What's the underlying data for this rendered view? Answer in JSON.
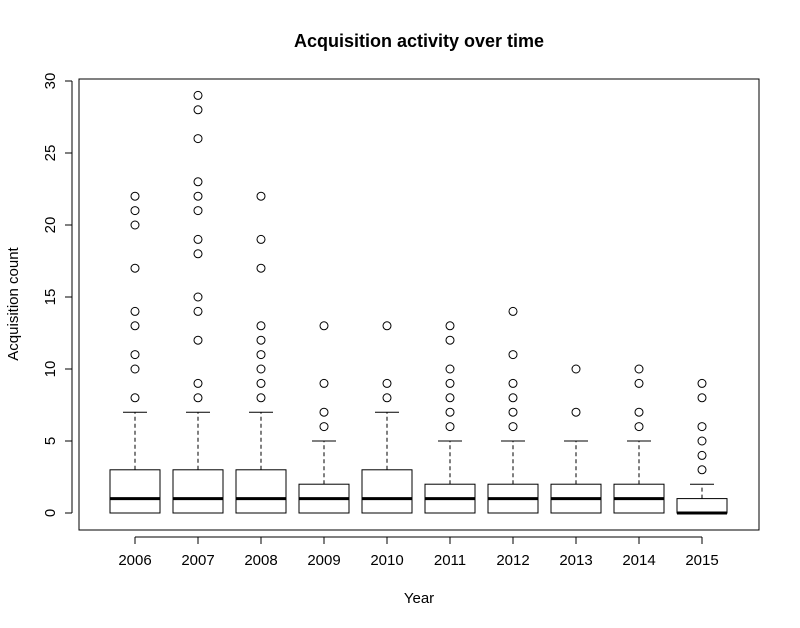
{
  "chart_data": {
    "type": "boxplot",
    "title": "Acquisition activity over time",
    "xlabel": "Year",
    "ylabel": "Acquisition count",
    "ylim": [
      -1.2,
      31.2
    ],
    "yticks": [
      0,
      5,
      10,
      15,
      20,
      25,
      30
    ],
    "grid": false,
    "categories": [
      "2006",
      "2007",
      "2008",
      "2009",
      "2010",
      "2011",
      "2012",
      "2013",
      "2014",
      "2015"
    ],
    "boxes": [
      {
        "q1": 0,
        "median": 1,
        "q3": 3,
        "whisker_low": 0,
        "whisker_high": 7,
        "outliers": [
          8,
          10,
          11,
          13,
          14,
          17,
          20,
          21,
          22
        ]
      },
      {
        "q1": 0,
        "median": 1,
        "q3": 3,
        "whisker_low": 0,
        "whisker_high": 7,
        "outliers": [
          8,
          9,
          12,
          14,
          15,
          18,
          19,
          21,
          22,
          23,
          26,
          28,
          29
        ]
      },
      {
        "q1": 0,
        "median": 1,
        "q3": 3,
        "whisker_low": 0,
        "whisker_high": 7,
        "outliers": [
          8,
          9,
          10,
          11,
          12,
          13,
          17,
          19,
          22
        ]
      },
      {
        "q1": 0,
        "median": 1,
        "q3": 2,
        "whisker_low": 0,
        "whisker_high": 5,
        "outliers": [
          6,
          7,
          9,
          13
        ]
      },
      {
        "q1": 0,
        "median": 1,
        "q3": 3,
        "whisker_low": 0,
        "whisker_high": 7,
        "outliers": [
          8,
          9,
          13
        ]
      },
      {
        "q1": 0,
        "median": 1,
        "q3": 2,
        "whisker_low": 0,
        "whisker_high": 5,
        "outliers": [
          6,
          7,
          8,
          9,
          10,
          12,
          13
        ]
      },
      {
        "q1": 0,
        "median": 1,
        "q3": 2,
        "whisker_low": 0,
        "whisker_high": 5,
        "outliers": [
          6,
          7,
          8,
          9,
          11,
          14
        ]
      },
      {
        "q1": 0,
        "median": 1,
        "q3": 2,
        "whisker_low": 0,
        "whisker_high": 5,
        "outliers": [
          7,
          10
        ]
      },
      {
        "q1": 0,
        "median": 1,
        "q3": 2,
        "whisker_low": 0,
        "whisker_high": 5,
        "outliers": [
          6,
          7,
          9,
          10
        ]
      },
      {
        "q1": 0,
        "median": 0,
        "q3": 1,
        "whisker_low": 0,
        "whisker_high": 2,
        "outliers": [
          3,
          4,
          5,
          6,
          8,
          9
        ]
      }
    ]
  }
}
